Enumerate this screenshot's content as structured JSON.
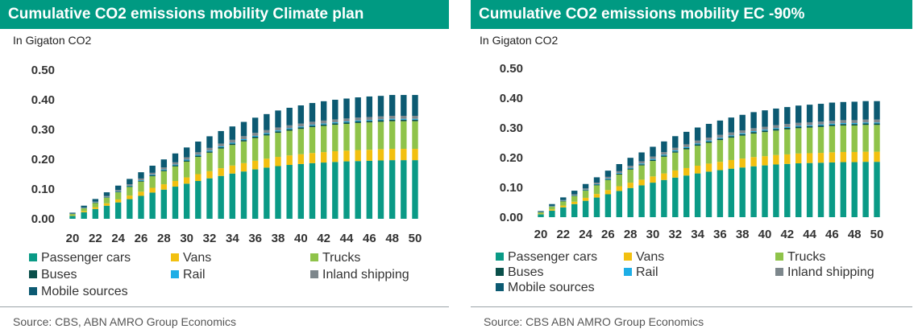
{
  "colors": {
    "header_bg": "#009a82",
    "passenger_cars": "#0a9a86",
    "vans": "#f2c010",
    "trucks": "#8fc34a",
    "buses": "#0a4f4a",
    "rail": "#1eaee6",
    "inland_shipping": "#7d878c",
    "mobile_sources": "#0c5a72"
  },
  "chart_data": [
    {
      "type": "bar",
      "stacked": true,
      "title": "Cumulative CO2 emissions mobility Climate plan",
      "ylabel": "In Gigaton CO2",
      "ylim": [
        0,
        0.5
      ],
      "yticks": [
        "0.00",
        "0.10",
        "0.20",
        "0.30",
        "0.40",
        "0.50"
      ],
      "x": [
        20,
        21,
        22,
        23,
        24,
        25,
        26,
        27,
        28,
        29,
        30,
        31,
        32,
        33,
        34,
        35,
        36,
        37,
        38,
        39,
        40,
        41,
        42,
        43,
        44,
        45,
        46,
        47,
        48,
        49,
        50
      ],
      "xtick_labels": [
        "20",
        "22",
        "24",
        "26",
        "28",
        "30",
        "32",
        "34",
        "36",
        "38",
        "40",
        "42",
        "44",
        "46",
        "48",
        "50"
      ],
      "series": [
        {
          "name": "Passenger cars",
          "values": [
            0.01,
            0.022,
            0.033,
            0.044,
            0.055,
            0.066,
            0.077,
            0.088,
            0.098,
            0.108,
            0.118,
            0.127,
            0.136,
            0.144,
            0.152,
            0.159,
            0.166,
            0.172,
            0.177,
            0.181,
            0.184,
            0.187,
            0.189,
            0.191,
            0.193,
            0.194,
            0.195,
            0.196,
            0.197,
            0.197,
            0.197
          ]
        },
        {
          "name": "Vans",
          "values": [
            0.002,
            0.004,
            0.006,
            0.008,
            0.01,
            0.012,
            0.014,
            0.016,
            0.018,
            0.019,
            0.021,
            0.023,
            0.024,
            0.026,
            0.027,
            0.028,
            0.029,
            0.03,
            0.031,
            0.032,
            0.033,
            0.034,
            0.035,
            0.036,
            0.036,
            0.037,
            0.037,
            0.038,
            0.038,
            0.038,
            0.038
          ]
        },
        {
          "name": "Trucks",
          "values": [
            0.004,
            0.009,
            0.014,
            0.019,
            0.024,
            0.029,
            0.034,
            0.039,
            0.044,
            0.049,
            0.053,
            0.058,
            0.062,
            0.066,
            0.069,
            0.073,
            0.076,
            0.078,
            0.081,
            0.083,
            0.085,
            0.087,
            0.088,
            0.089,
            0.09,
            0.091,
            0.092,
            0.092,
            0.093,
            0.093,
            0.093
          ]
        },
        {
          "name": "Buses",
          "values": [
            0.0004,
            0.0008,
            0.0012,
            0.0016,
            0.002,
            0.0024,
            0.0028,
            0.003,
            0.0033,
            0.0036,
            0.0038,
            0.004,
            0.0042,
            0.0044,
            0.0045,
            0.0046,
            0.0047,
            0.0048,
            0.0049,
            0.005,
            0.005,
            0.005,
            0.005,
            0.005,
            0.005,
            0.005,
            0.005,
            0.005,
            0.005,
            0.005,
            0.005
          ]
        },
        {
          "name": "Rail",
          "values": [
            0.0003,
            0.0006,
            0.0009,
            0.0012,
            0.0015,
            0.0018,
            0.002,
            0.0022,
            0.0024,
            0.0026,
            0.0028,
            0.003,
            0.003,
            0.003,
            0.003,
            0.003,
            0.003,
            0.003,
            0.003,
            0.003,
            0.003,
            0.003,
            0.003,
            0.003,
            0.003,
            0.003,
            0.003,
            0.003,
            0.003,
            0.003,
            0.003
          ]
        },
        {
          "name": "Inland shipping",
          "values": [
            0.0008,
            0.0016,
            0.0024,
            0.0032,
            0.004,
            0.0048,
            0.0056,
            0.0062,
            0.0068,
            0.0074,
            0.008,
            0.0085,
            0.009,
            0.0094,
            0.0098,
            0.01,
            0.01,
            0.01,
            0.01,
            0.01,
            0.01,
            0.01,
            0.01,
            0.01,
            0.01,
            0.01,
            0.01,
            0.01,
            0.01,
            0.01,
            0.01
          ]
        },
        {
          "name": "Mobile sources",
          "values": [
            0.003,
            0.006,
            0.009,
            0.012,
            0.015,
            0.018,
            0.021,
            0.024,
            0.027,
            0.03,
            0.033,
            0.036,
            0.039,
            0.042,
            0.045,
            0.048,
            0.051,
            0.054,
            0.057,
            0.059,
            0.061,
            0.063,
            0.065,
            0.066,
            0.067,
            0.068,
            0.069,
            0.069,
            0.07,
            0.07,
            0.07
          ]
        }
      ],
      "source": "Source: CBS, ABN AMRO Group Economics"
    },
    {
      "type": "bar",
      "stacked": true,
      "title": "Cumulative CO2 emissions mobility EC -90%",
      "ylabel": "In Gigaton CO2",
      "ylim": [
        0,
        0.5
      ],
      "yticks": [
        "0.00",
        "0.10",
        "0.20",
        "0.30",
        "0.40",
        "0.50"
      ],
      "x": [
        20,
        21,
        22,
        23,
        24,
        25,
        26,
        27,
        28,
        29,
        30,
        31,
        32,
        33,
        34,
        35,
        36,
        37,
        38,
        39,
        40,
        41,
        42,
        43,
        44,
        45,
        46,
        47,
        48,
        49,
        50
      ],
      "xtick_labels": [
        "20",
        "22",
        "24",
        "26",
        "28",
        "30",
        "32",
        "34",
        "36",
        "38",
        "40",
        "42",
        "44",
        "46",
        "48",
        "50"
      ],
      "series": [
        {
          "name": "Passenger cars",
          "values": [
            0.01,
            0.022,
            0.033,
            0.044,
            0.055,
            0.066,
            0.077,
            0.088,
            0.098,
            0.107,
            0.116,
            0.125,
            0.133,
            0.14,
            0.147,
            0.153,
            0.158,
            0.163,
            0.167,
            0.171,
            0.174,
            0.177,
            0.179,
            0.181,
            0.182,
            0.183,
            0.184,
            0.185,
            0.185,
            0.186,
            0.186
          ]
        },
        {
          "name": "Vans",
          "values": [
            0.002,
            0.004,
            0.006,
            0.008,
            0.01,
            0.012,
            0.014,
            0.016,
            0.018,
            0.019,
            0.021,
            0.022,
            0.024,
            0.025,
            0.026,
            0.027,
            0.028,
            0.029,
            0.03,
            0.031,
            0.031,
            0.032,
            0.032,
            0.033,
            0.033,
            0.033,
            0.034,
            0.034,
            0.034,
            0.034,
            0.034
          ]
        },
        {
          "name": "Trucks",
          "values": [
            0.004,
            0.009,
            0.014,
            0.019,
            0.024,
            0.029,
            0.034,
            0.039,
            0.044,
            0.048,
            0.052,
            0.056,
            0.06,
            0.063,
            0.067,
            0.07,
            0.073,
            0.075,
            0.077,
            0.079,
            0.081,
            0.082,
            0.084,
            0.085,
            0.086,
            0.087,
            0.088,
            0.089,
            0.089,
            0.09,
            0.09
          ]
        },
        {
          "name": "Buses",
          "values": [
            0.0004,
            0.0008,
            0.0012,
            0.0016,
            0.002,
            0.0024,
            0.0028,
            0.003,
            0.0033,
            0.0036,
            0.0038,
            0.004,
            0.0042,
            0.0044,
            0.0045,
            0.0046,
            0.0047,
            0.0048,
            0.0049,
            0.005,
            0.005,
            0.005,
            0.005,
            0.005,
            0.005,
            0.005,
            0.005,
            0.005,
            0.005,
            0.005,
            0.005
          ]
        },
        {
          "name": "Rail",
          "values": [
            0.0003,
            0.0006,
            0.0009,
            0.0012,
            0.0015,
            0.0018,
            0.002,
            0.0022,
            0.0024,
            0.0026,
            0.0028,
            0.003,
            0.003,
            0.003,
            0.003,
            0.003,
            0.003,
            0.003,
            0.003,
            0.003,
            0.003,
            0.003,
            0.003,
            0.003,
            0.003,
            0.003,
            0.003,
            0.003,
            0.003,
            0.003,
            0.003
          ]
        },
        {
          "name": "Inland shipping",
          "values": [
            0.0008,
            0.0016,
            0.0024,
            0.0032,
            0.004,
            0.0048,
            0.0056,
            0.0062,
            0.0068,
            0.0074,
            0.008,
            0.0085,
            0.009,
            0.0094,
            0.0098,
            0.01,
            0.01,
            0.01,
            0.01,
            0.01,
            0.01,
            0.01,
            0.01,
            0.01,
            0.01,
            0.01,
            0.01,
            0.01,
            0.01,
            0.01,
            0.01
          ]
        },
        {
          "name": "Mobile sources",
          "values": [
            0.003,
            0.006,
            0.009,
            0.012,
            0.015,
            0.018,
            0.021,
            0.024,
            0.027,
            0.03,
            0.033,
            0.036,
            0.039,
            0.042,
            0.044,
            0.046,
            0.048,
            0.05,
            0.052,
            0.054,
            0.055,
            0.056,
            0.057,
            0.058,
            0.059,
            0.06,
            0.061,
            0.061,
            0.062,
            0.062,
            0.062
          ]
        }
      ],
      "source": "Source: CBS ABN AMRO Group Economics"
    }
  ]
}
